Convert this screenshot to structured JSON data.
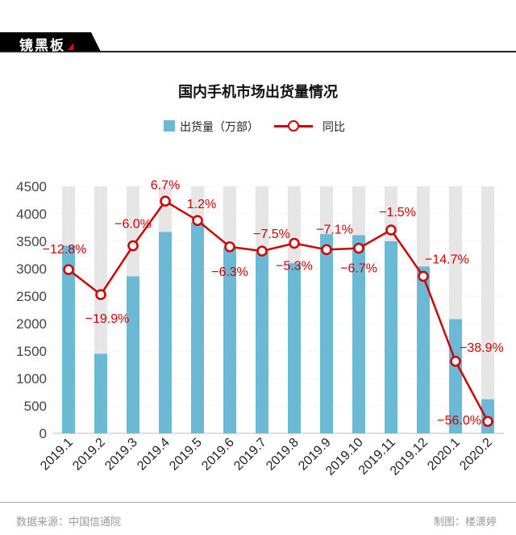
{
  "logo": {
    "text": "镜黑板"
  },
  "chart_data": {
    "type": "bar+line",
    "title": "国内手机市场出货量情况",
    "categories": [
      "2019.1",
      "2019.2",
      "2019.3",
      "2019.4",
      "2019.5",
      "2019.6",
      "2019.7",
      "2019.8",
      "2019.9",
      "2019.10",
      "2019.11",
      "2019.12",
      "2020.1",
      "2020.2"
    ],
    "series": [
      {
        "name": "出货量（万部）",
        "type": "bar",
        "color": "#6bb9d4",
        "values": [
          3420,
          1450,
          2860,
          3670,
          3840,
          3380,
          3300,
          3100,
          3630,
          3610,
          3500,
          3040,
          2080,
          620
        ]
      },
      {
        "name": "同比",
        "type": "line",
        "color": "#cc0000",
        "unit": "%",
        "values": [
          -12.8,
          -19.9,
          -6.0,
          6.7,
          1.2,
          -6.3,
          -7.5,
          -5.3,
          -7.1,
          -6.7,
          -1.5,
          -14.7,
          -38.9,
          -56.0
        ],
        "labels": [
          "−12.8%",
          "−19.9%",
          "−6.0%",
          "6.7%",
          "1.2%",
          "−6.3%",
          "−7.5%",
          "−5.3%",
          "−7.1%",
          "−6.7%",
          "−1.5%",
          "−14.7%",
          "−38.9%",
          "−56.0%"
        ]
      }
    ],
    "yticks": [
      "0",
      "500",
      "1000",
      "1500",
      "2000",
      "2500",
      "3000",
      "3500",
      "4000",
      "4500"
    ],
    "ylim": [
      0,
      4500
    ],
    "y2lim": [
      -59.4,
      10.9
    ],
    "y2_axis_visible": false,
    "background_bar_color": "#e6e6e6",
    "grid": true,
    "legend": "top-center"
  },
  "footer": {
    "source": "数据来源：中国信通院",
    "author": "制图：楼潇婷"
  }
}
